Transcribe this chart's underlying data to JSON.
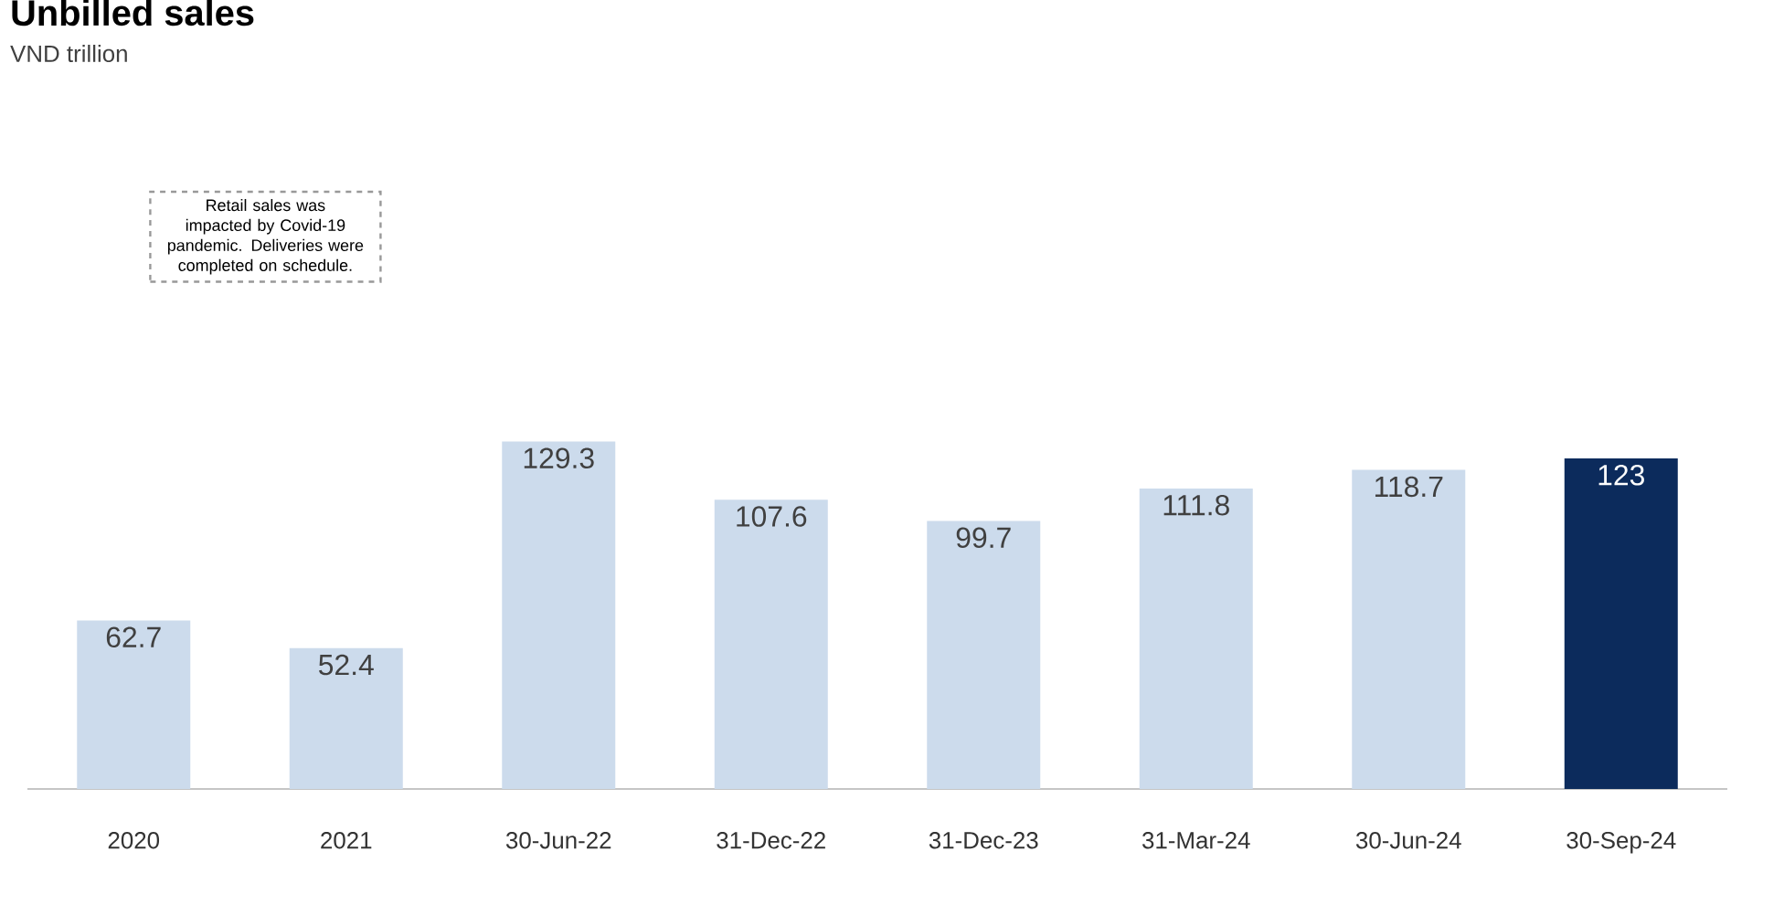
{
  "chart_data": {
    "type": "bar",
    "title": "Unbilled sales",
    "subtitle": "VND trillion",
    "categories": [
      "2020",
      "2021",
      "30-Jun-22",
      "31-Dec-22",
      "31-Dec-23",
      "31-Mar-24",
      "30-Jun-24",
      "30-Sep-24"
    ],
    "values": [
      62.7,
      52.4,
      129.3,
      107.6,
      99.7,
      111.8,
      118.7,
      123
    ],
    "colors": [
      "#ccdbec",
      "#ccdbec",
      "#ccdbec",
      "#ccdbec",
      "#ccdbec",
      "#ccdbec",
      "#ccdbec",
      "#0c2b5c"
    ],
    "data_labels": true,
    "annotations": [
      "Retail sales was impacted by Covid-19 pandemic. Deliveries were completed on schedule."
    ]
  }
}
